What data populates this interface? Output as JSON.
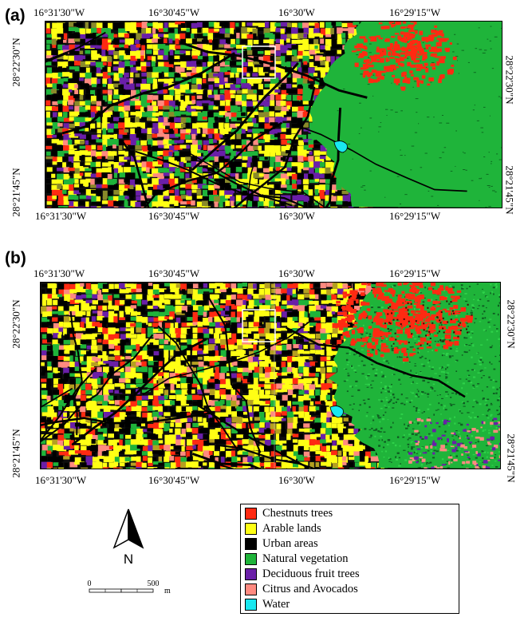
{
  "panels": [
    {
      "label": "(a)",
      "top_lon": [
        "16°31'30\"W",
        "16°30'45\"W",
        "16°30'W",
        "16°29'15\"W"
      ],
      "bottom_lon": [
        "16°31'30\"W",
        "16°30'45\"W",
        "16°30'W",
        "16°29'15\"W"
      ],
      "left_lat": [
        "28°22'30\"N",
        "28°21'45\"N"
      ],
      "right_lat": [
        "28°22'30\"N",
        "28°21'45\"N"
      ]
    },
    {
      "label": "(b)",
      "top_lon": [
        "16°31'30\"W",
        "16°30'45\"W",
        "16°30'W",
        "16°29'15\"W"
      ],
      "bottom_lon": [
        "16°31'30\"W",
        "16°30'45\"W",
        "16°30'W",
        "16°29'15\"W"
      ],
      "left_lat": [
        "28°22'30\"N",
        "28°21'45\"N"
      ],
      "right_lat": [
        "28°22'30\"N",
        "28°21'45\"N"
      ]
    }
  ],
  "legend": {
    "items": [
      {
        "label": "Chestnuts trees",
        "color": "#ff2a12"
      },
      {
        "label": "Arable lands",
        "color": "#ffff14"
      },
      {
        "label": "Urban areas",
        "color": "#000000"
      },
      {
        "label": "Natural vegetation",
        "color": "#1fb43a"
      },
      {
        "label": "Deciduous fruit trees",
        "color": "#6a1fa8"
      },
      {
        "label": "Citrus and Avocados",
        "color": "#ff8a80"
      },
      {
        "label": "Water",
        "color": "#19e8f0"
      }
    ]
  },
  "north_arrow": {
    "label": "N",
    "icon": "north-arrow-icon"
  },
  "scale_bar": {
    "start": "0",
    "end": "500",
    "unit": "m"
  }
}
